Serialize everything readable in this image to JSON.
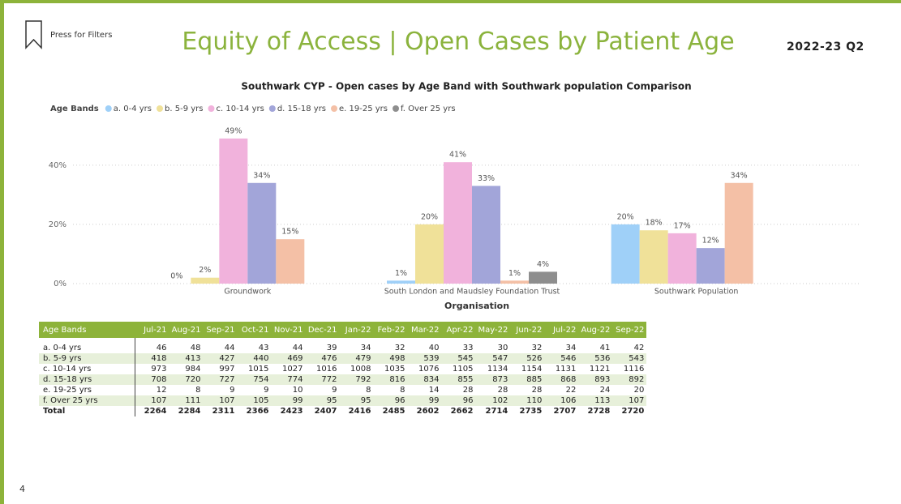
{
  "header": {
    "filter_button": "Press for Filters",
    "title": "Equity of Access | Open Cases by Patient Age",
    "period": "2022-23 Q2",
    "page_number": "4"
  },
  "chart_data": {
    "type": "bar",
    "title": "Southwark CYP - Open cases by Age Band with Southwark population Comparison",
    "legend_title": "Age Bands",
    "x_label": "Organisation",
    "categories": [
      "Groundwork",
      "South London and Maudsley Foundation Trust",
      "Southwark Population"
    ],
    "series": [
      {
        "name": "a. 0-4 yrs",
        "color": "#9fd0f8",
        "values": [
          0,
          1,
          20
        ],
        "value_labels": [
          "0%",
          "1%",
          "20%"
        ]
      },
      {
        "name": "b. 5-9 yrs",
        "color": "#f0e199",
        "values": [
          2,
          20,
          18
        ],
        "value_labels": [
          "2%",
          "20%",
          "18%"
        ]
      },
      {
        "name": "c. 10-14 yrs",
        "color": "#f1b2dc",
        "values": [
          49,
          41,
          17
        ],
        "value_labels": [
          "49%",
          "41%",
          "17%"
        ]
      },
      {
        "name": "d. 15-18 yrs",
        "color": "#a2a5d9",
        "values": [
          34,
          33,
          12
        ],
        "value_labels": [
          "34%",
          "33%",
          "12%"
        ]
      },
      {
        "name": "e. 19-25 yrs",
        "color": "#f4c0a6",
        "values": [
          15,
          1,
          34
        ],
        "value_labels": [
          "15%",
          "1%",
          "34%"
        ]
      },
      {
        "name": "f. Over 25 yrs",
        "color": "#8e8e8e",
        "values": [
          null,
          4,
          null
        ],
        "value_labels": [
          null,
          "4%",
          null
        ]
      }
    ],
    "ylim": [
      0,
      52
    ],
    "yticks": [
      {
        "value": 0,
        "label": "0%"
      },
      {
        "value": 20,
        "label": "20%"
      },
      {
        "value": 40,
        "label": "40%"
      }
    ],
    "grid": true
  },
  "table": {
    "header": [
      "Age Bands",
      "Jul-21",
      "Aug-21",
      "Sep-21",
      "Oct-21",
      "Nov-21",
      "Dec-21",
      "Jan-22",
      "Feb-22",
      "Mar-22",
      "Apr-22",
      "May-22",
      "Jun-22",
      "Jul-22",
      "Aug-22",
      "Sep-22"
    ],
    "rows": [
      [
        "a. 0-4 yrs",
        46,
        48,
        44,
        43,
        44,
        39,
        34,
        32,
        40,
        33,
        30,
        32,
        34,
        41,
        42
      ],
      [
        "b. 5-9 yrs",
        418,
        413,
        427,
        440,
        469,
        476,
        479,
        498,
        539,
        545,
        547,
        526,
        546,
        536,
        543
      ],
      [
        "c. 10-14 yrs",
        973,
        984,
        997,
        1015,
        1027,
        1016,
        1008,
        1035,
        1076,
        1105,
        1134,
        1154,
        1131,
        1121,
        1116
      ],
      [
        "d. 15-18 yrs",
        708,
        720,
        727,
        754,
        774,
        772,
        792,
        816,
        834,
        855,
        873,
        885,
        868,
        893,
        892
      ],
      [
        "e. 19-25 yrs",
        12,
        8,
        9,
        9,
        10,
        9,
        8,
        8,
        14,
        28,
        28,
        28,
        22,
        24,
        20
      ],
      [
        "f. Over 25 yrs",
        107,
        111,
        107,
        105,
        99,
        95,
        95,
        96,
        99,
        96,
        102,
        110,
        106,
        113,
        107
      ],
      [
        "Total",
        2264,
        2284,
        2311,
        2366,
        2423,
        2407,
        2416,
        2485,
        2602,
        2662,
        2714,
        2735,
        2707,
        2728,
        2720
      ]
    ]
  }
}
